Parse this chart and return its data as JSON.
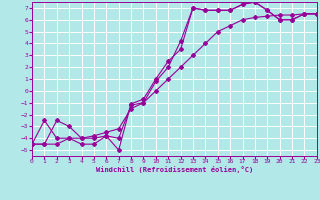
{
  "xlabel": "Windchill (Refroidissement éolien,°C)",
  "xlim": [
    0,
    23
  ],
  "ylim": [
    -5.5,
    7.5
  ],
  "xticks": [
    0,
    1,
    2,
    3,
    4,
    5,
    6,
    7,
    8,
    9,
    10,
    11,
    12,
    13,
    14,
    15,
    16,
    17,
    18,
    19,
    20,
    21,
    22,
    23
  ],
  "yticks": [
    -5,
    -4,
    -3,
    -2,
    -1,
    0,
    1,
    2,
    3,
    4,
    5,
    6,
    7
  ],
  "bg_color": "#b2e8e8",
  "grid_color": "#ffffff",
  "line_color": "#990099",
  "curve1_x": [
    0,
    1,
    2,
    3,
    4,
    5,
    6,
    7,
    8,
    9,
    10,
    11,
    12,
    13,
    14,
    15,
    16,
    17,
    18,
    19,
    20,
    21,
    22,
    23
  ],
  "curve1_y": [
    -4.5,
    -2.5,
    -4.0,
    -4.0,
    -4.5,
    -4.5,
    -3.8,
    -5.0,
    -1.1,
    -0.7,
    1.0,
    2.5,
    3.5,
    7.0,
    6.8,
    6.8,
    6.8,
    7.3,
    7.5,
    6.8,
    6.0,
    6.0,
    6.5,
    6.5
  ],
  "curve2_x": [
    0,
    1,
    2,
    3,
    4,
    5,
    6,
    7,
    8,
    9,
    10,
    11,
    12,
    13,
    14,
    15,
    16,
    17,
    18,
    19,
    20,
    21,
    22,
    23
  ],
  "curve2_y": [
    -4.5,
    -4.5,
    -2.5,
    -3.0,
    -4.0,
    -4.0,
    -3.8,
    -4.0,
    -1.2,
    -1.0,
    0.8,
    2.0,
    4.2,
    7.0,
    6.8,
    6.8,
    6.8,
    7.3,
    7.5,
    6.8,
    6.0,
    6.0,
    6.5,
    6.5
  ],
  "curve3_x": [
    0,
    1,
    2,
    3,
    4,
    5,
    6,
    7,
    8,
    9,
    10,
    11,
    12,
    13,
    14,
    15,
    16,
    17,
    18,
    19,
    20,
    21,
    22,
    23
  ],
  "curve3_y": [
    -4.5,
    -4.5,
    -4.5,
    -4.0,
    -4.0,
    -3.8,
    -3.5,
    -3.2,
    -1.5,
    -1.0,
    0.0,
    1.0,
    2.0,
    3.0,
    4.0,
    5.0,
    5.5,
    6.0,
    6.2,
    6.3,
    6.4,
    6.4,
    6.5,
    6.5
  ]
}
